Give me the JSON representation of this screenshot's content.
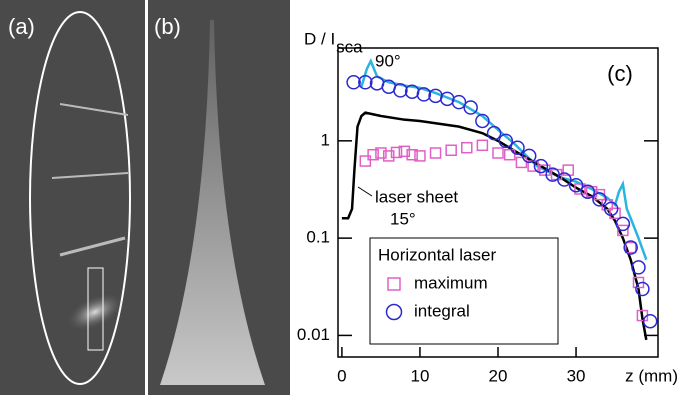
{
  "panel_labels": [
    "(a)",
    "(b)"
  ],
  "chart_data": {
    "type": "line",
    "panel_label": "(c)",
    "ylabel": "D / I",
    "ylabel_subscript": "sca",
    "xlabel": "z (mm)",
    "xlim": [
      -0.5,
      40.5
    ],
    "xticks": [
      0,
      10,
      20,
      30
    ],
    "ylim": [
      0.006,
      9
    ],
    "yticks": [
      0.01,
      0.1,
      1
    ],
    "log_y": true,
    "annotations": [
      "90°",
      "laser sheet",
      "15°"
    ],
    "legend": {
      "title": "Horizontal laser",
      "position": "lower left"
    },
    "series": [
      {
        "name": "90°",
        "color": "#2ab4e0",
        "marker": "line",
        "x": [
          2.5,
          3.2,
          3.7,
          4.5,
          6,
          8,
          10,
          12,
          15,
          18,
          20,
          22,
          25,
          28,
          30,
          32,
          34,
          35,
          35.5,
          36,
          36.5,
          37,
          38,
          39
        ],
        "values": [
          3.6,
          5.5,
          6.6,
          4.6,
          4.0,
          3.7,
          3.5,
          3.1,
          2.5,
          1.8,
          1.3,
          0.95,
          0.55,
          0.42,
          0.38,
          0.32,
          0.26,
          0.22,
          0.3,
          0.36,
          0.2,
          0.16,
          0.1,
          0.06
        ]
      },
      {
        "name": "15°",
        "color": "#000000",
        "marker": "line",
        "x": [
          0,
          0.8,
          1.3,
          1.6,
          2,
          2.5,
          3,
          5,
          8,
          10,
          15,
          18,
          20,
          22,
          25,
          28,
          30,
          32,
          34,
          35,
          36,
          37,
          38,
          38.5,
          39
        ],
        "values": [
          0.16,
          0.16,
          0.2,
          0.5,
          1.4,
          1.8,
          1.95,
          1.8,
          1.65,
          1.6,
          1.4,
          1.2,
          1.0,
          0.8,
          0.58,
          0.42,
          0.33,
          0.27,
          0.2,
          0.15,
          0.1,
          0.06,
          0.03,
          0.015,
          0.009
        ]
      },
      {
        "name": "maximum",
        "color": "#e060c8",
        "marker": "square",
        "x": [
          3,
          4,
          5,
          6,
          7,
          8,
          9,
          10,
          12,
          14,
          16,
          18,
          20,
          21.5,
          23,
          24.5,
          26,
          27.5,
          29,
          30.5,
          32,
          33,
          34,
          35,
          36,
          37,
          38,
          38.5
        ],
        "values": [
          0.62,
          0.72,
          0.75,
          0.7,
          0.76,
          0.78,
          0.72,
          0.7,
          0.75,
          0.8,
          0.85,
          0.9,
          0.75,
          0.72,
          0.6,
          0.55,
          0.5,
          0.45,
          0.5,
          0.32,
          0.3,
          0.28,
          0.22,
          0.18,
          0.12,
          0.08,
          0.035,
          0.016
        ]
      },
      {
        "name": "integral",
        "color": "#2a2ad0",
        "marker": "circle",
        "x": [
          1.5,
          3,
          4.5,
          6,
          7.5,
          9,
          10.5,
          12,
          13.5,
          15,
          16.5,
          18,
          19.5,
          21,
          22.5,
          24,
          25.5,
          27,
          28.5,
          30,
          31.5,
          33,
          34.5,
          36,
          37,
          38,
          38.5,
          39.5
        ],
        "values": [
          4.0,
          4.0,
          3.9,
          3.6,
          3.3,
          3.2,
          3.0,
          2.9,
          2.7,
          2.5,
          2.2,
          1.6,
          1.2,
          1.0,
          0.85,
          0.7,
          0.55,
          0.45,
          0.4,
          0.35,
          0.3,
          0.25,
          0.2,
          0.14,
          0.08,
          0.05,
          0.03,
          0.014
        ]
      }
    ]
  }
}
